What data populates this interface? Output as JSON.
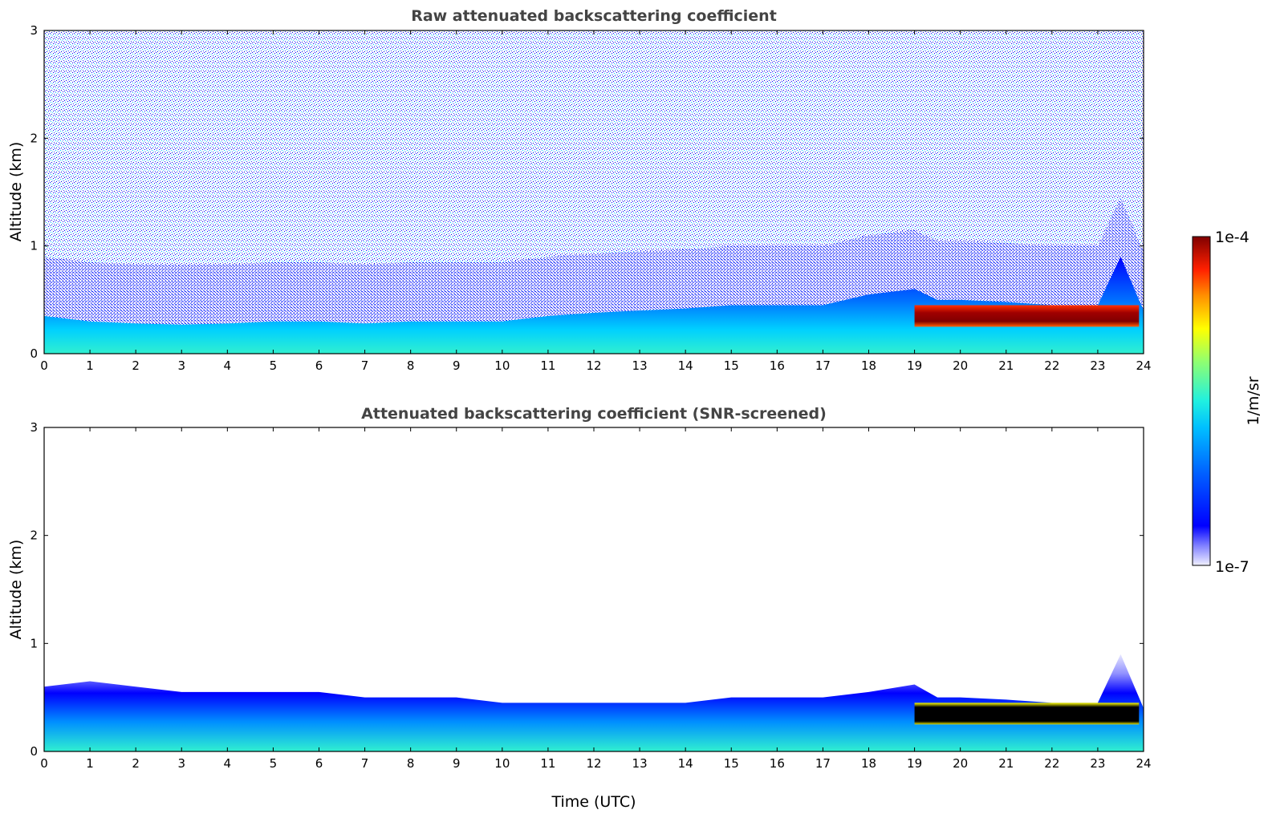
{
  "chart_data": [
    {
      "type": "heatmap",
      "title": "Raw attenuated backscattering coefficient",
      "xlabel": "",
      "ylabel": "Altitude (km)",
      "xlim": [
        0,
        24
      ],
      "ylim": [
        0,
        3
      ],
      "x_ticks": [
        "0",
        "1",
        "2",
        "3",
        "4",
        "5",
        "6",
        "7",
        "8",
        "9",
        "10",
        "11",
        "12",
        "13",
        "14",
        "15",
        "16",
        "17",
        "18",
        "19",
        "20",
        "21",
        "22",
        "23",
        "24"
      ],
      "y_ticks": [
        "0",
        "1",
        "2",
        "3"
      ],
      "colorscale": "jet, log",
      "boundary_layer_top_km": {
        "x": [
          0,
          1,
          2,
          3,
          4,
          5,
          6,
          7,
          8,
          9,
          10,
          11,
          12,
          13,
          14,
          15,
          16,
          17,
          18,
          19,
          19.5,
          20,
          21,
          22,
          23,
          23.5,
          24
        ],
        "y": [
          0.35,
          0.3,
          0.28,
          0.27,
          0.28,
          0.3,
          0.3,
          0.28,
          0.3,
          0.3,
          0.3,
          0.35,
          0.38,
          0.4,
          0.42,
          0.45,
          0.45,
          0.45,
          0.55,
          0.6,
          0.5,
          0.5,
          0.48,
          0.45,
          0.45,
          0.9,
          0.4
        ]
      },
      "cloud_layer": {
        "x_start": 19.0,
        "x_end": 23.9,
        "base_km": 0.25,
        "top_km": 0.45
      },
      "noise_region": "high above boundary layer",
      "background_value": "noise"
    },
    {
      "type": "heatmap",
      "title": "Attenuated backscattering coefficient (SNR-screened)",
      "xlabel": "Time (UTC)",
      "ylabel": "Altitude (km)",
      "xlim": [
        0,
        24
      ],
      "ylim": [
        0,
        3
      ],
      "x_ticks": [
        "0",
        "1",
        "2",
        "3",
        "4",
        "5",
        "6",
        "7",
        "8",
        "9",
        "10",
        "11",
        "12",
        "13",
        "14",
        "15",
        "16",
        "17",
        "18",
        "19",
        "20",
        "21",
        "22",
        "23",
        "24"
      ],
      "y_ticks": [
        "0",
        "1",
        "2",
        "3"
      ],
      "colorscale": "jet, log",
      "boundary_layer_top_km": {
        "x": [
          0,
          1,
          2,
          3,
          4,
          5,
          6,
          7,
          8,
          9,
          10,
          11,
          12,
          13,
          14,
          15,
          16,
          17,
          18,
          19,
          19.5,
          20,
          21,
          22,
          23,
          23.5,
          24
        ],
        "y": [
          0.6,
          0.65,
          0.6,
          0.55,
          0.55,
          0.55,
          0.55,
          0.5,
          0.5,
          0.5,
          0.45,
          0.45,
          0.45,
          0.45,
          0.45,
          0.5,
          0.5,
          0.5,
          0.55,
          0.62,
          0.5,
          0.5,
          0.48,
          0.45,
          0.45,
          0.9,
          0.4
        ]
      },
      "cloud_layer": {
        "x_start": 19.0,
        "x_end": 23.9,
        "base_km": 0.25,
        "top_km": 0.45
      }
    }
  ],
  "colorbar": {
    "label": "1/m/sr",
    "max_label": "1e-4",
    "min_label": "1e-7",
    "scale": "log",
    "range": [
      1e-07,
      0.0001
    ]
  },
  "colors": {
    "jet_stops": [
      "#f0f0ff",
      "#c8c8ff",
      "#8080ff",
      "#0000ff",
      "#0050ff",
      "#00a0ff",
      "#00e0ff",
      "#40ffc0",
      "#a0ff60",
      "#ffff00",
      "#ffa000",
      "#ff3000",
      "#c00000",
      "#800000"
    ],
    "title_color": "#444444"
  }
}
